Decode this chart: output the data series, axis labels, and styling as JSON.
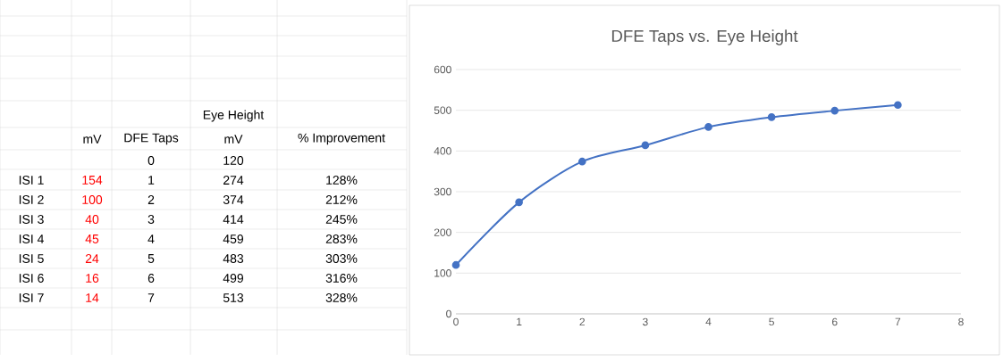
{
  "chart_data": {
    "type": "line",
    "title": "DFE Taps vs. Eye Height",
    "x": [
      0,
      1,
      2,
      3,
      4,
      5,
      6,
      7
    ],
    "series": [
      {
        "color": "#4472c4",
        "values": [
          120,
          274,
          374,
          414,
          459,
          483,
          499,
          513
        ]
      }
    ],
    "xlim": [
      0,
      8
    ],
    "xticks": [
      0,
      1,
      2,
      3,
      4,
      5,
      6,
      7,
      8
    ],
    "ylim": [
      0,
      600
    ],
    "yticks": [
      0,
      100,
      200,
      300,
      400,
      500,
      600
    ],
    "grid": "y",
    "marker": "circle",
    "line_style": "solid",
    "annotations": [
      "Eye Height",
      "mV",
      "DFE Taps",
      "mV",
      "% Improvement",
      "ISI 1",
      "ISI 2",
      "ISI 3",
      "ISI 4",
      "ISI 5",
      "ISI 6",
      "ISI 7",
      "154",
      "100",
      "40",
      "45",
      "24",
      "16",
      "14",
      "128%",
      "212%",
      "245%",
      "283%",
      "303%",
      "316%",
      "328%",
      "0",
      "1",
      "2",
      "3",
      "4",
      "5",
      "6",
      "7",
      "120",
      "274",
      "374",
      "414",
      "459",
      "483",
      "499",
      "513"
    ]
  }
}
